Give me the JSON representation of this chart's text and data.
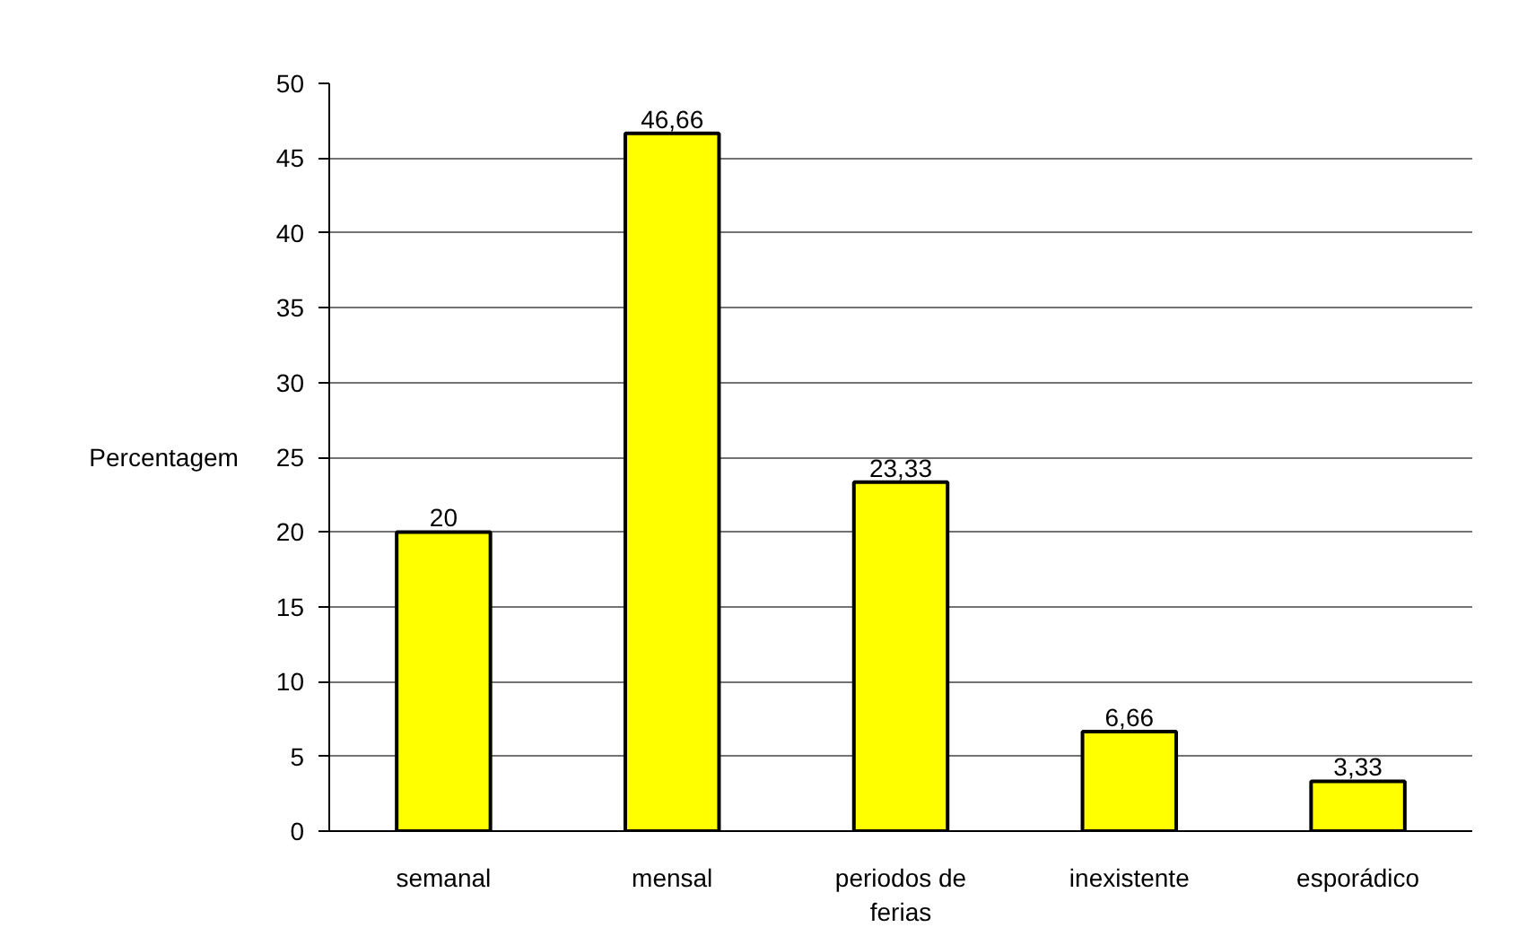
{
  "chart_data": {
    "type": "bar",
    "ylabel": "Percentagem",
    "categories": [
      "semanal",
      "mensal",
      "periodos de ferias",
      "inexistente",
      "esporádico"
    ],
    "values": [
      20,
      46.66,
      23.33,
      6.66,
      3.33
    ],
    "value_labels": [
      "20",
      "46,66",
      "23,33",
      "6,66",
      "3,33"
    ],
    "color": "#ffff00",
    "ylim": [
      0,
      50
    ],
    "yticks": [
      0,
      5,
      10,
      15,
      20,
      25,
      30,
      35,
      40,
      45,
      50
    ],
    "grid": "y"
  }
}
